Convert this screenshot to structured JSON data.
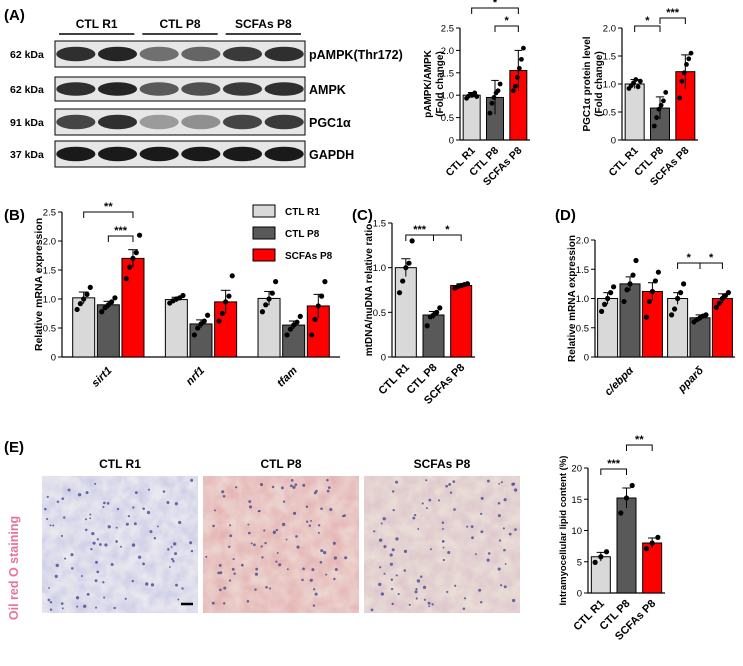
{
  "figure": {
    "panels": {
      "A": "(A)",
      "B": "(B)",
      "C": "(C)",
      "D": "(D)",
      "E": "(E)"
    },
    "blot": {
      "groups": [
        "CTL R1",
        "CTL P8",
        "SCFAs P8"
      ],
      "rows": [
        {
          "kda": "62 kDa",
          "protein": "pAMPK(Thr172)",
          "lanes": [
            0.85,
            0.9,
            0.55,
            0.6,
            0.8,
            0.85
          ]
        },
        {
          "kda": "62 kDa",
          "protein": "AMPK",
          "lanes": [
            0.85,
            0.9,
            0.65,
            0.7,
            0.8,
            0.85
          ]
        },
        {
          "kda": "91 kDa",
          "protein": "PGC1α",
          "lanes": [
            0.75,
            0.85,
            0.35,
            0.4,
            0.75,
            0.8
          ]
        },
        {
          "kda": "37 kDa",
          "protein": "GAPDH",
          "lanes": [
            0.95,
            0.95,
            0.95,
            0.95,
            0.95,
            0.95
          ]
        }
      ]
    },
    "staining": {
      "side_label": "Oil red O staining",
      "images": [
        "CTL R1",
        "CTL P8",
        "SCFAs P8"
      ]
    },
    "colors": {
      "ctl_r1": "#d9d9d9",
      "ctl_p8": "#595959",
      "scfas_p8": "#ff0000",
      "stain_label": "#e8739a"
    }
  },
  "chart_data": [
    {
      "panel": "A1",
      "type": "bar",
      "categories": [
        "CTL R1",
        "CTL P8",
        "SCFAs P8"
      ],
      "values": [
        1.0,
        0.95,
        1.55
      ],
      "errors": [
        0.06,
        0.38,
        0.45
      ],
      "points": [
        [
          0.93,
          0.98,
          1.02,
          1.0,
          1.05,
          0.97
        ],
        [
          0.6,
          0.82,
          0.95,
          1.05,
          1.1,
          1.25
        ],
        [
          1.1,
          1.2,
          1.4,
          1.6,
          1.8,
          2.05
        ]
      ],
      "ylabel": "pAMPK/AMPK\n(Fold change)",
      "ylim": [
        0,
        2.5
      ],
      "yticks": [
        0,
        0.5,
        1.0,
        1.5,
        2.0,
        2.5
      ],
      "significance": [
        {
          "pair": [
            0,
            2
          ],
          "label": "*"
        },
        {
          "pair": [
            1,
            2
          ],
          "label": "*"
        }
      ]
    },
    {
      "panel": "A2",
      "type": "bar",
      "categories": [
        "CTL R1",
        "CTL P8",
        "SCFAs P8"
      ],
      "values": [
        1.0,
        0.57,
        1.22
      ],
      "errors": [
        0.08,
        0.2,
        0.3
      ],
      "points": [
        [
          0.92,
          0.97,
          1.02,
          1.08,
          0.95,
          1.05
        ],
        [
          0.25,
          0.4,
          0.55,
          0.62,
          0.7,
          0.85
        ],
        [
          0.75,
          1.05,
          1.2,
          1.35,
          1.45,
          1.55
        ]
      ],
      "ylabel": "PGC1α protein level\n(Fold change)",
      "ylim": [
        0,
        2.0
      ],
      "yticks": [
        0,
        0.5,
        1.0,
        1.5,
        2.0
      ],
      "significance": [
        {
          "pair": [
            0,
            1
          ],
          "label": "*"
        },
        {
          "pair": [
            1,
            2
          ],
          "label": "***"
        }
      ]
    },
    {
      "panel": "B",
      "type": "bar",
      "categories": [
        "sirt1",
        "nrf1",
        "tfam"
      ],
      "series": [
        {
          "name": "CTL R1",
          "values": [
            1.02,
            0.99,
            1.01
          ],
          "errors": [
            0.1,
            0.04,
            0.12
          ],
          "points": [
            [
              0.82,
              0.92,
              1.0,
              1.08,
              1.2
            ],
            [
              0.93,
              0.97,
              1.0,
              1.02,
              1.06
            ],
            [
              0.78,
              0.9,
              1.0,
              1.1,
              1.3
            ]
          ]
        },
        {
          "name": "CTL P8",
          "values": [
            0.9,
            0.57,
            0.55
          ],
          "errors": [
            0.06,
            0.07,
            0.07
          ],
          "points": [
            [
              0.78,
              0.85,
              0.9,
              0.95,
              1.02
            ],
            [
              0.38,
              0.5,
              0.57,
              0.62,
              0.72
            ],
            [
              0.38,
              0.48,
              0.55,
              0.6,
              0.7
            ]
          ]
        },
        {
          "name": "SCFAs P8",
          "values": [
            1.7,
            0.95,
            0.88
          ],
          "errors": [
            0.15,
            0.2,
            0.2
          ],
          "points": [
            [
              1.35,
              1.55,
              1.7,
              1.8,
              2.1
            ],
            [
              0.62,
              0.75,
              0.95,
              1.05,
              1.4
            ],
            [
              0.38,
              0.65,
              0.88,
              1.05,
              1.3
            ]
          ]
        }
      ],
      "ylabel": "Relative mRNA expression",
      "ylim": [
        0,
        2.5
      ],
      "yticks": [
        0,
        0.5,
        1.0,
        1.5,
        2.0,
        2.5
      ],
      "significance": [
        {
          "pair": [
            0,
            2
          ],
          "label": "**"
        },
        {
          "pair": [
            1,
            2
          ],
          "label": "***"
        }
      ]
    },
    {
      "panel": "C",
      "type": "bar",
      "categories": [
        "CTL R1",
        "CTL P8",
        "SCFAs P8"
      ],
      "values": [
        1.0,
        0.47,
        0.8
      ],
      "errors": [
        0.1,
        0.04,
        0.02
      ],
      "points": [
        [
          0.72,
          0.85,
          1.0,
          1.05,
          1.3
        ],
        [
          0.35,
          0.45,
          0.47,
          0.5,
          0.55
        ],
        [
          0.77,
          0.79,
          0.8,
          0.81,
          0.82
        ]
      ],
      "ylabel": "mtDNA/nuDNA relative ratio",
      "ylim": [
        0,
        1.5
      ],
      "yticks": [
        0,
        0.5,
        1.0,
        1.5
      ],
      "significance": [
        {
          "pair": [
            0,
            1
          ],
          "label": "***"
        },
        {
          "pair": [
            1,
            2
          ],
          "label": "*"
        }
      ]
    },
    {
      "panel": "D",
      "type": "bar",
      "categories": [
        "c/ebpα",
        "pparδ"
      ],
      "series": [
        {
          "name": "CTL R1",
          "values": [
            1.0,
            1.0
          ],
          "errors": [
            0.1,
            0.1
          ],
          "points": [
            [
              0.78,
              0.9,
              1.0,
              1.1,
              1.2
            ],
            [
              0.72,
              0.82,
              1.0,
              1.1,
              1.25
            ]
          ]
        },
        {
          "name": "CTL P8",
          "values": [
            1.25,
            0.67
          ],
          "errors": [
            0.12,
            0.05
          ],
          "points": [
            [
              0.95,
              1.15,
              1.25,
              1.4,
              1.65
            ],
            [
              0.6,
              0.64,
              0.67,
              0.7,
              0.72
            ]
          ]
        },
        {
          "name": "SCFAs P8",
          "values": [
            1.12,
            1.0
          ],
          "errors": [
            0.15,
            0.08
          ],
          "points": [
            [
              0.68,
              0.95,
              1.12,
              1.3,
              1.45
            ],
            [
              0.85,
              0.92,
              1.0,
              1.05,
              1.1
            ]
          ]
        }
      ],
      "ylabel": "Relative mRNA expression",
      "ylim": [
        0,
        2.0
      ],
      "yticks": [
        0,
        0.5,
        1.0,
        1.5,
        2.0
      ],
      "significance": [
        {
          "cat": 1,
          "pair": [
            0,
            1
          ],
          "label": "*"
        },
        {
          "cat": 1,
          "pair": [
            1,
            2
          ],
          "label": "*"
        }
      ]
    },
    {
      "panel": "E",
      "type": "bar",
      "categories": [
        "CTL R1",
        "CTL P8",
        "SCFAs P8"
      ],
      "values": [
        5.8,
        15.2,
        8.0
      ],
      "errors": [
        0.7,
        1.6,
        0.8
      ],
      "points": [
        [
          4.9,
          5.8,
          6.6
        ],
        [
          12.8,
          15.2,
          17.2
        ],
        [
          7.1,
          8.0,
          8.9
        ]
      ],
      "ylabel": "Intramyocellular lipid content (%)",
      "ylim": [
        0,
        20
      ],
      "yticks": [
        0,
        5,
        10,
        15,
        20
      ],
      "significance": [
        {
          "pair": [
            0,
            1
          ],
          "label": "***"
        },
        {
          "pair": [
            1,
            2
          ],
          "label": "**"
        }
      ]
    }
  ]
}
